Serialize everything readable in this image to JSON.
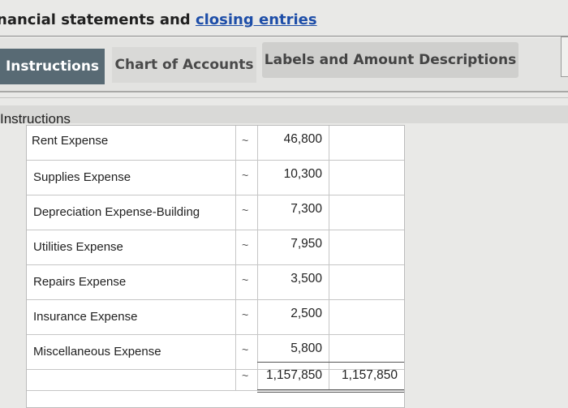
{
  "header": {
    "title_prefix": "nancial statements and ",
    "title_link": "closing entries"
  },
  "tabs": [
    {
      "label": "Instructions"
    },
    {
      "label": "Chart of Accounts"
    },
    {
      "label": "Labels and Amount Descriptions"
    }
  ],
  "section_label": "Instructions",
  "ledger": {
    "rows": [
      {
        "account": "Rent Expense",
        "selector": "~",
        "debit": "46,800",
        "credit": ""
      },
      {
        "account": "Supplies Expense",
        "selector": "~",
        "debit": "10,300",
        "credit": ""
      },
      {
        "account": "Depreciation Expense-Building",
        "selector": "~",
        "debit": "7,300",
        "credit": ""
      },
      {
        "account": "Utilities Expense",
        "selector": "~",
        "debit": "7,950",
        "credit": ""
      },
      {
        "account": "Repairs Expense",
        "selector": "~",
        "debit": "3,500",
        "credit": ""
      },
      {
        "account": "Insurance Expense",
        "selector": "~",
        "debit": "2,500",
        "credit": ""
      },
      {
        "account": "Miscellaneous Expense",
        "selector": "~",
        "debit": "5,800",
        "credit": ""
      },
      {
        "account": "",
        "selector": "~",
        "debit": "1,157,850",
        "credit": "1,157,850"
      }
    ]
  }
}
